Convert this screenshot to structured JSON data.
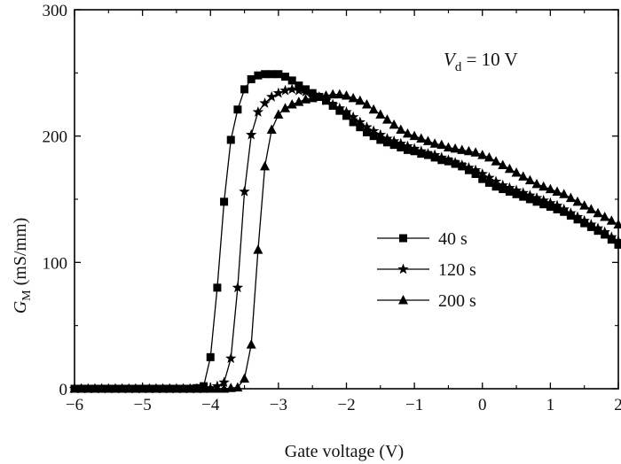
{
  "chart_data": {
    "type": "line",
    "xlabel": "Gate voltage (V)",
    "ylabel_main": "G",
    "ylabel_sub": "M",
    "ylabel_unit": " (mS/mm)",
    "annotation_main": "V",
    "annotation_sub": "d",
    "annotation_rest": " = 10 V",
    "xlim": [
      -6,
      2
    ],
    "ylim": [
      0,
      300
    ],
    "xticks": [
      -6,
      -5,
      -4,
      -3,
      -2,
      -1,
      0,
      1,
      2
    ],
    "xtick_labels": [
      "−6",
      "−5",
      "−4",
      "−3",
      "−2",
      "−1",
      "0",
      "1",
      "2"
    ],
    "yticks": [
      0,
      100,
      200,
      300
    ],
    "ytick_labels": [
      "0",
      "100",
      "200",
      "300"
    ],
    "grid": false,
    "legend_position": "center-right",
    "series": [
      {
        "name": "40 s",
        "marker": "square",
        "points": [
          [
            -6.0,
            0
          ],
          [
            -5.9,
            0
          ],
          [
            -5.8,
            0
          ],
          [
            -5.7,
            0
          ],
          [
            -5.6,
            0
          ],
          [
            -5.5,
            0
          ],
          [
            -5.4,
            0
          ],
          [
            -5.3,
            0
          ],
          [
            -5.2,
            0
          ],
          [
            -5.1,
            0
          ],
          [
            -5.0,
            0
          ],
          [
            -4.9,
            0
          ],
          [
            -4.8,
            0
          ],
          [
            -4.7,
            0
          ],
          [
            -4.6,
            0
          ],
          [
            -4.5,
            0
          ],
          [
            -4.4,
            0
          ],
          [
            -4.3,
            0
          ],
          [
            -4.2,
            0.5
          ],
          [
            -4.1,
            2
          ],
          [
            -4.0,
            25
          ],
          [
            -3.9,
            80
          ],
          [
            -3.8,
            148
          ],
          [
            -3.7,
            197
          ],
          [
            -3.6,
            221
          ],
          [
            -3.5,
            237
          ],
          [
            -3.4,
            245
          ],
          [
            -3.3,
            248
          ],
          [
            -3.2,
            249
          ],
          [
            -3.1,
            249
          ],
          [
            -3.0,
            249
          ],
          [
            -2.9,
            247
          ],
          [
            -2.8,
            244
          ],
          [
            -2.7,
            240
          ],
          [
            -2.6,
            237
          ],
          [
            -2.5,
            234
          ],
          [
            -2.4,
            231
          ],
          [
            -2.3,
            228
          ],
          [
            -2.2,
            224
          ],
          [
            -2.1,
            220
          ],
          [
            -2.0,
            216
          ],
          [
            -1.9,
            211
          ],
          [
            -1.8,
            207
          ],
          [
            -1.7,
            203
          ],
          [
            -1.6,
            200
          ],
          [
            -1.5,
            197
          ],
          [
            -1.4,
            195
          ],
          [
            -1.3,
            193
          ],
          [
            -1.2,
            191
          ],
          [
            -1.1,
            189
          ],
          [
            -1.0,
            188
          ],
          [
            -0.9,
            186
          ],
          [
            -0.8,
            185
          ],
          [
            -0.7,
            183
          ],
          [
            -0.6,
            181
          ],
          [
            -0.5,
            180
          ],
          [
            -0.4,
            178
          ],
          [
            -0.3,
            176
          ],
          [
            -0.2,
            173
          ],
          [
            -0.1,
            170
          ],
          [
            0.0,
            166
          ],
          [
            0.1,
            163
          ],
          [
            0.2,
            160
          ],
          [
            0.3,
            158
          ],
          [
            0.4,
            156
          ],
          [
            0.5,
            154
          ],
          [
            0.6,
            152
          ],
          [
            0.7,
            150
          ],
          [
            0.8,
            148
          ],
          [
            0.9,
            146
          ],
          [
            1.0,
            144
          ],
          [
            1.1,
            142
          ],
          [
            1.2,
            140
          ],
          [
            1.3,
            137
          ],
          [
            1.4,
            134
          ],
          [
            1.5,
            131
          ],
          [
            1.6,
            128
          ],
          [
            1.7,
            125
          ],
          [
            1.8,
            122
          ],
          [
            1.9,
            118
          ],
          [
            2.0,
            114
          ]
        ]
      },
      {
        "name": "120 s",
        "marker": "star",
        "points": [
          [
            -6.0,
            0
          ],
          [
            -5.9,
            0
          ],
          [
            -5.8,
            0
          ],
          [
            -5.7,
            0
          ],
          [
            -5.6,
            0
          ],
          [
            -5.5,
            0
          ],
          [
            -5.4,
            0
          ],
          [
            -5.3,
            0
          ],
          [
            -5.2,
            0
          ],
          [
            -5.1,
            0
          ],
          [
            -5.0,
            0
          ],
          [
            -4.9,
            0
          ],
          [
            -4.8,
            0
          ],
          [
            -4.7,
            0
          ],
          [
            -4.6,
            0
          ],
          [
            -4.5,
            0
          ],
          [
            -4.4,
            0
          ],
          [
            -4.3,
            0
          ],
          [
            -4.2,
            0
          ],
          [
            -4.1,
            0
          ],
          [
            -4.0,
            0.5
          ],
          [
            -3.9,
            2
          ],
          [
            -3.8,
            5
          ],
          [
            -3.7,
            24
          ],
          [
            -3.6,
            80
          ],
          [
            -3.5,
            156
          ],
          [
            -3.4,
            201
          ],
          [
            -3.3,
            219
          ],
          [
            -3.2,
            226
          ],
          [
            -3.1,
            231
          ],
          [
            -3.0,
            234
          ],
          [
            -2.9,
            236
          ],
          [
            -2.8,
            237
          ],
          [
            -2.7,
            236
          ],
          [
            -2.6,
            235
          ],
          [
            -2.5,
            233
          ],
          [
            -2.4,
            231
          ],
          [
            -2.3,
            228
          ],
          [
            -2.2,
            225
          ],
          [
            -2.1,
            222
          ],
          [
            -2.0,
            219
          ],
          [
            -1.9,
            215
          ],
          [
            -1.8,
            211
          ],
          [
            -1.7,
            207
          ],
          [
            -1.6,
            204
          ],
          [
            -1.5,
            201
          ],
          [
            -1.4,
            198
          ],
          [
            -1.3,
            196
          ],
          [
            -1.2,
            194
          ],
          [
            -1.1,
            192
          ],
          [
            -1.0,
            190
          ],
          [
            -0.9,
            188
          ],
          [
            -0.8,
            186
          ],
          [
            -0.7,
            185
          ],
          [
            -0.6,
            183
          ],
          [
            -0.5,
            181
          ],
          [
            -0.4,
            179
          ],
          [
            -0.3,
            177
          ],
          [
            -0.2,
            175
          ],
          [
            -0.1,
            173
          ],
          [
            0.0,
            170
          ],
          [
            0.1,
            167
          ],
          [
            0.2,
            164
          ],
          [
            0.3,
            161
          ],
          [
            0.4,
            159
          ],
          [
            0.5,
            157
          ],
          [
            0.6,
            155
          ],
          [
            0.7,
            153
          ],
          [
            0.8,
            151
          ],
          [
            0.9,
            149
          ],
          [
            1.0,
            147
          ],
          [
            1.1,
            145
          ],
          [
            1.2,
            142
          ],
          [
            1.3,
            139
          ],
          [
            1.4,
            136
          ],
          [
            1.5,
            133
          ],
          [
            1.6,
            130
          ],
          [
            1.7,
            127
          ],
          [
            1.8,
            124
          ],
          [
            1.9,
            120
          ],
          [
            2.0,
            117
          ]
        ]
      },
      {
        "name": "200 s",
        "marker": "triangle",
        "points": [
          [
            -6.0,
            0
          ],
          [
            -5.9,
            0
          ],
          [
            -5.8,
            0
          ],
          [
            -5.7,
            0
          ],
          [
            -5.6,
            0
          ],
          [
            -5.5,
            0
          ],
          [
            -5.4,
            0
          ],
          [
            -5.3,
            0
          ],
          [
            -5.2,
            0
          ],
          [
            -5.1,
            0
          ],
          [
            -5.0,
            0
          ],
          [
            -4.9,
            0
          ],
          [
            -4.8,
            0
          ],
          [
            -4.7,
            0
          ],
          [
            -4.6,
            0
          ],
          [
            -4.5,
            0
          ],
          [
            -4.4,
            0
          ],
          [
            -4.3,
            0
          ],
          [
            -4.2,
            0
          ],
          [
            -4.1,
            0
          ],
          [
            -4.0,
            0
          ],
          [
            -3.9,
            0
          ],
          [
            -3.8,
            0
          ],
          [
            -3.7,
            0.5
          ],
          [
            -3.6,
            1
          ],
          [
            -3.5,
            8
          ],
          [
            -3.4,
            35
          ],
          [
            -3.3,
            110
          ],
          [
            -3.2,
            176
          ],
          [
            -3.1,
            205
          ],
          [
            -3.0,
            217
          ],
          [
            -2.9,
            222
          ],
          [
            -2.8,
            225
          ],
          [
            -2.7,
            227
          ],
          [
            -2.6,
            229
          ],
          [
            -2.5,
            230
          ],
          [
            -2.4,
            231
          ],
          [
            -2.3,
            232
          ],
          [
            -2.2,
            233
          ],
          [
            -2.1,
            233
          ],
          [
            -2.0,
            232
          ],
          [
            -1.9,
            230
          ],
          [
            -1.8,
            228
          ],
          [
            -1.7,
            225
          ],
          [
            -1.6,
            221
          ],
          [
            -1.5,
            217
          ],
          [
            -1.4,
            213
          ],
          [
            -1.3,
            209
          ],
          [
            -1.2,
            205
          ],
          [
            -1.1,
            202
          ],
          [
            -1.0,
            200
          ],
          [
            -0.9,
            198
          ],
          [
            -0.8,
            196
          ],
          [
            -0.7,
            194
          ],
          [
            -0.6,
            193
          ],
          [
            -0.5,
            191
          ],
          [
            -0.4,
            190
          ],
          [
            -0.3,
            189
          ],
          [
            -0.2,
            188
          ],
          [
            -0.1,
            187
          ],
          [
            0.0,
            185
          ],
          [
            0.1,
            183
          ],
          [
            0.2,
            180
          ],
          [
            0.3,
            177
          ],
          [
            0.4,
            174
          ],
          [
            0.5,
            171
          ],
          [
            0.6,
            168
          ],
          [
            0.7,
            165
          ],
          [
            0.8,
            162
          ],
          [
            0.9,
            160
          ],
          [
            1.0,
            158
          ],
          [
            1.1,
            156
          ],
          [
            1.2,
            154
          ],
          [
            1.3,
            151
          ],
          [
            1.4,
            148
          ],
          [
            1.5,
            145
          ],
          [
            1.6,
            142
          ],
          [
            1.7,
            139
          ],
          [
            1.8,
            136
          ],
          [
            1.9,
            133
          ],
          [
            2.0,
            130
          ]
        ]
      }
    ]
  }
}
